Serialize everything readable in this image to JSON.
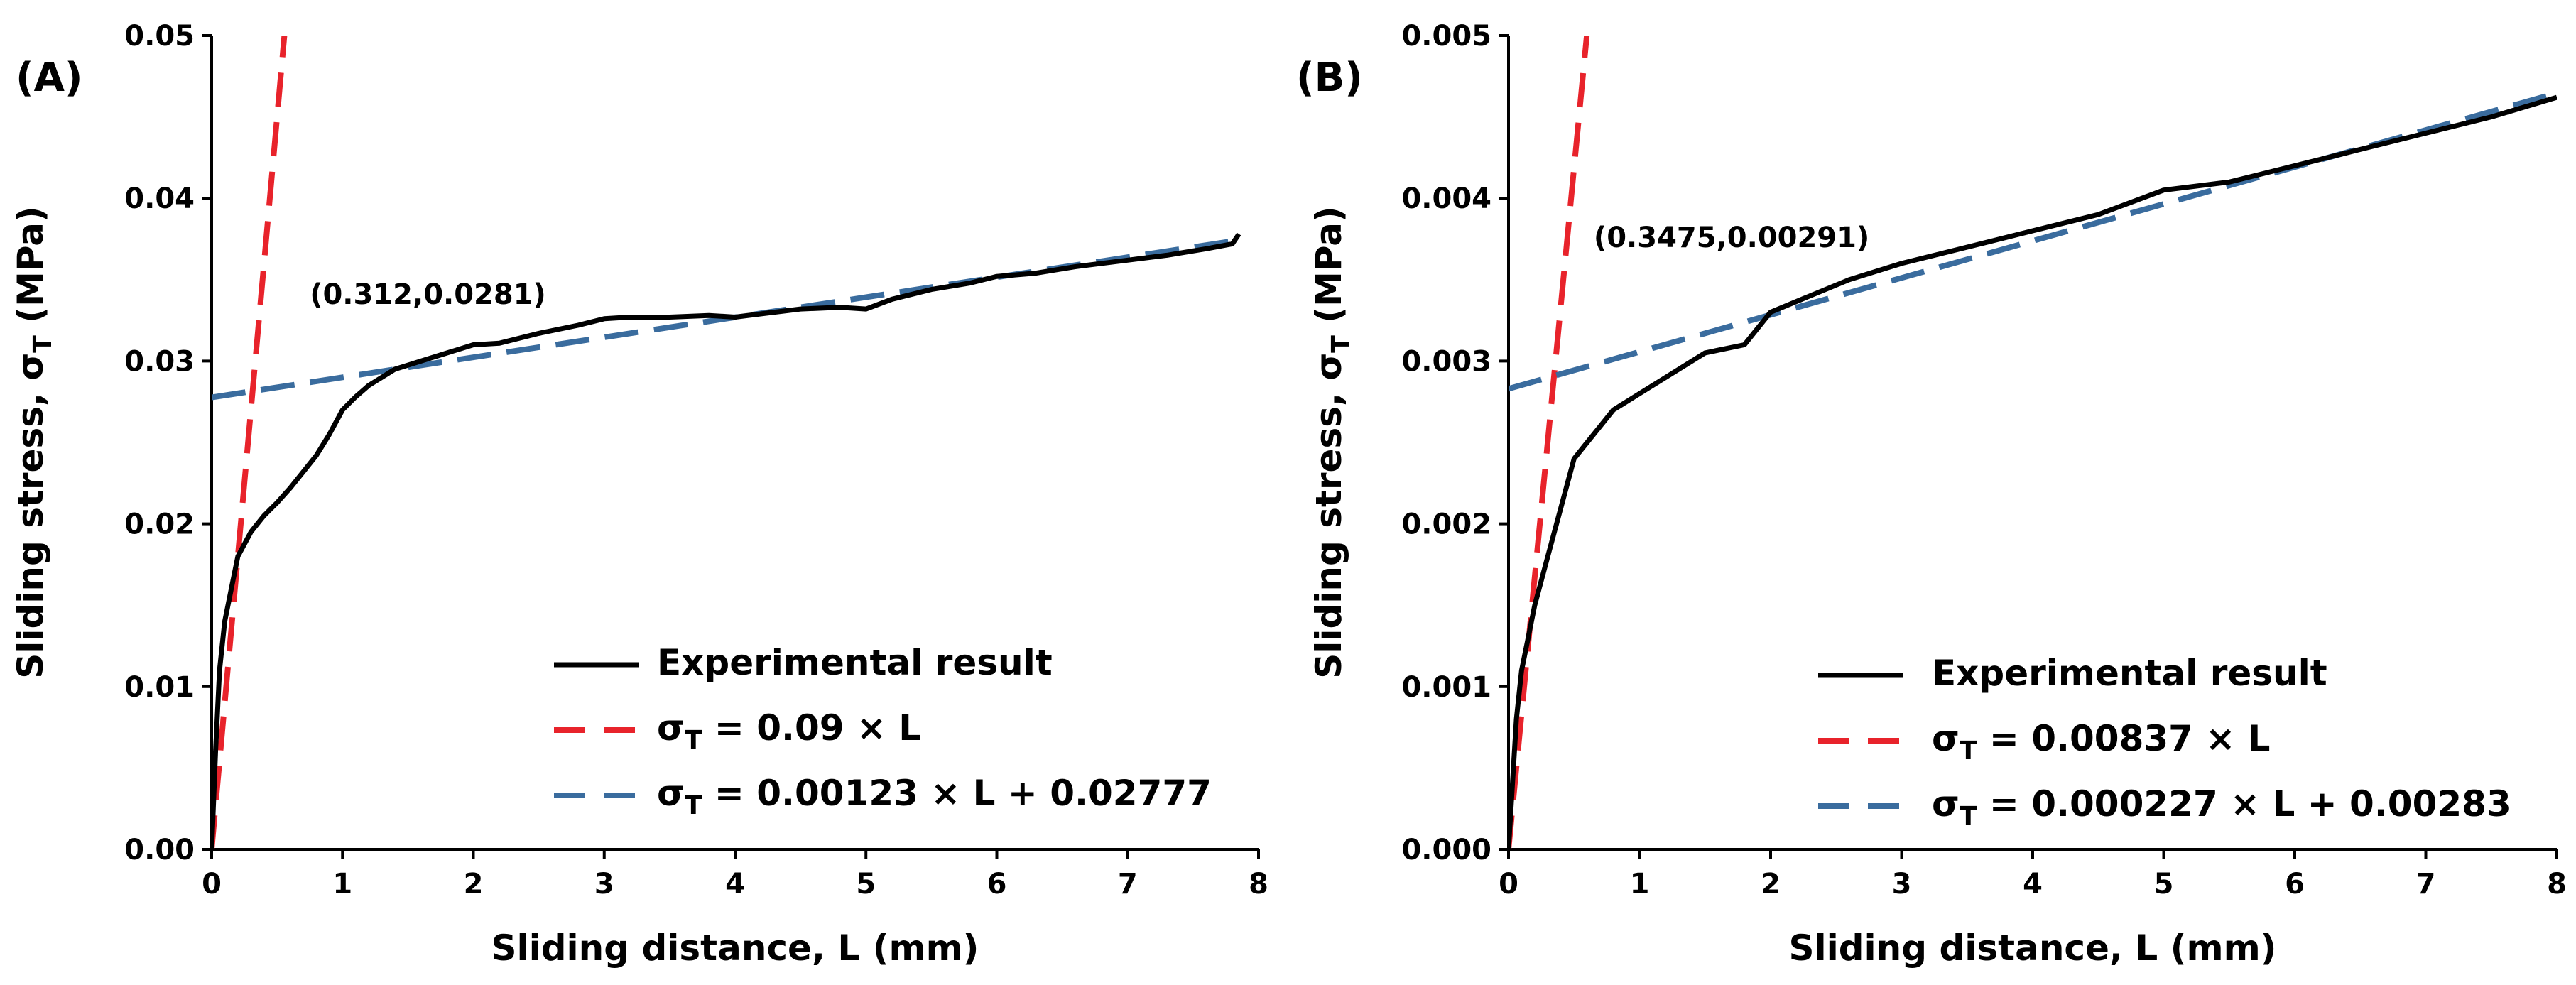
{
  "chart_data": [
    {
      "type": "line",
      "panel_label": "(A)",
      "xlabel": "Sliding distance, L (mm)",
      "ylabel_main": "Sliding stress, σ",
      "ylabel_sub": "T",
      "ylabel_unit": " (MPa)",
      "xlim": [
        0,
        8
      ],
      "ylim": [
        0,
        0.05
      ],
      "x_ticks": [
        0,
        1,
        2,
        3,
        4,
        5,
        6,
        7,
        8
      ],
      "x_tick_labels": [
        "0",
        "1",
        "2",
        "3",
        "4",
        "5",
        "6",
        "7",
        "8"
      ],
      "y_ticks": [
        0,
        0.01,
        0.02,
        0.03,
        0.04,
        0.05
      ],
      "y_tick_labels": [
        "0.00",
        "0.01",
        "0.02",
        "0.03",
        "0.04",
        "0.05"
      ],
      "annotation": {
        "text": "(0.312,0.0281)",
        "x": 0.75,
        "y": 0.0335
      },
      "legend_position": "bottom-right",
      "series": [
        {
          "name": "Experimental result",
          "legend_prefix": "",
          "legend_sub": "",
          "legend_suffix": "Experimental result",
          "style": "solid",
          "color": "#000000",
          "x": [
            0,
            0.03,
            0.06,
            0.1,
            0.15,
            0.2,
            0.3,
            0.4,
            0.5,
            0.6,
            0.7,
            0.8,
            0.9,
            1.0,
            1.1,
            1.2,
            1.4,
            1.6,
            1.8,
            2.0,
            2.2,
            2.5,
            2.8,
            3.0,
            3.2,
            3.5,
            3.8,
            4.0,
            4.2,
            4.5,
            4.8,
            5.0,
            5.2,
            5.5,
            5.8,
            6.0,
            6.3,
            6.6,
            7.0,
            7.3,
            7.6,
            7.8,
            7.85
          ],
          "y": [
            0,
            0.006,
            0.011,
            0.014,
            0.016,
            0.018,
            0.0195,
            0.0205,
            0.0213,
            0.0222,
            0.0232,
            0.0242,
            0.0255,
            0.027,
            0.0278,
            0.0285,
            0.0295,
            0.03,
            0.0305,
            0.031,
            0.0311,
            0.0317,
            0.0322,
            0.0326,
            0.0327,
            0.0327,
            0.0328,
            0.0327,
            0.0329,
            0.0332,
            0.0333,
            0.0332,
            0.0338,
            0.0344,
            0.0348,
            0.0352,
            0.0354,
            0.0358,
            0.0362,
            0.0365,
            0.0369,
            0.0372,
            0.0378
          ]
        },
        {
          "name": "σT = 0.09 × L",
          "legend_prefix": "σ",
          "legend_sub": "T",
          "legend_suffix": " = 0.09 × L",
          "style": "dashed",
          "color": "#e8232b",
          "x": [
            0,
            0.556
          ],
          "y": [
            0,
            0.05
          ]
        },
        {
          "name": "σT = 0.00123 × L + 0.02777",
          "legend_prefix": "σ",
          "legend_sub": "T",
          "legend_suffix": " = 0.00123 × L + 0.02777",
          "style": "dashed",
          "color": "#3a6c9e",
          "x": [
            0,
            7.8
          ],
          "y": [
            0.02777,
            0.037364
          ]
        }
      ]
    },
    {
      "type": "line",
      "panel_label": "(B)",
      "xlabel": "Sliding distance, L (mm)",
      "ylabel_main": "Sliding stress, σ",
      "ylabel_sub": "T",
      "ylabel_unit": " (MPa)",
      "xlim": [
        0,
        8
      ],
      "ylim": [
        0,
        0.005
      ],
      "x_ticks": [
        0,
        1,
        2,
        3,
        4,
        5,
        6,
        7,
        8
      ],
      "x_tick_labels": [
        "0",
        "1",
        "2",
        "3",
        "4",
        "5",
        "6",
        "7",
        "8"
      ],
      "y_ticks": [
        0,
        0.001,
        0.002,
        0.003,
        0.004,
        0.005
      ],
      "y_tick_labels": [
        "0.000",
        "0.001",
        "0.002",
        "0.003",
        "0.004",
        "0.005"
      ],
      "annotation": {
        "text": "(0.3475,0.00291)",
        "x": 0.65,
        "y": 0.0037
      },
      "legend_position": "bottom-right",
      "series": [
        {
          "name": "Experimental result",
          "legend_prefix": "",
          "legend_sub": "",
          "legend_suffix": "Experimental result",
          "style": "solid",
          "color": "#000000",
          "x": [
            0,
            0.03,
            0.06,
            0.1,
            0.15,
            0.2,
            0.3,
            0.4,
            0.5,
            0.6,
            0.7,
            0.8,
            1.0,
            1.2,
            1.5,
            1.8,
            2.0,
            2.3,
            2.6,
            3.0,
            3.5,
            4.0,
            4.5,
            5.0,
            5.5,
            6.0,
            6.5,
            7.0,
            7.5,
            8.0
          ],
          "y": [
            0,
            0.0004,
            0.0008,
            0.0011,
            0.0013,
            0.0015,
            0.0018,
            0.0021,
            0.0024,
            0.0025,
            0.0026,
            0.0027,
            0.0028,
            0.0029,
            0.00305,
            0.0031,
            0.0033,
            0.0034,
            0.0035,
            0.0036,
            0.0037,
            0.0038,
            0.0039,
            0.00405,
            0.0041,
            0.0042,
            0.0043,
            0.0044,
            0.0045,
            0.00462
          ]
        },
        {
          "name": "σT = 0.00837 × L",
          "legend_prefix": "σ",
          "legend_sub": "T",
          "legend_suffix": " = 0.00837 × L",
          "style": "dashed",
          "color": "#e8232b",
          "x": [
            0,
            0.5974
          ],
          "y": [
            0,
            0.005
          ]
        },
        {
          "name": "σT = 0.000227 × L + 0.00283",
          "legend_prefix": "σ",
          "legend_sub": "T",
          "legend_suffix": " = 0.000227 × L + 0.00283",
          "style": "dashed",
          "color": "#3a6c9e",
          "x": [
            0,
            8
          ],
          "y": [
            0.00283,
            0.004646
          ]
        }
      ]
    }
  ]
}
